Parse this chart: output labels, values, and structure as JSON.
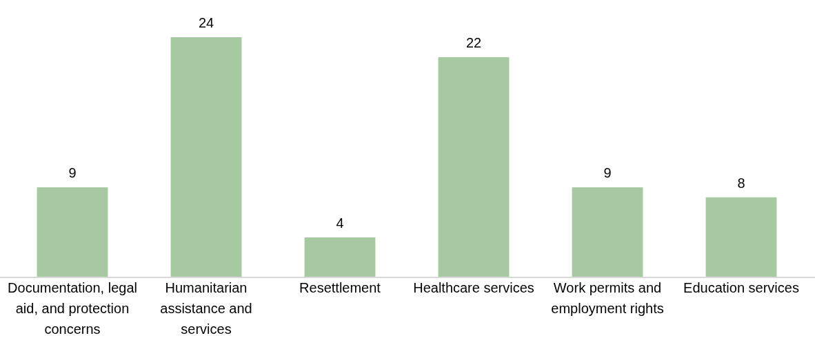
{
  "chart_data": {
    "type": "bar",
    "categories": [
      "Documentation, legal aid, and protection concerns",
      "Humanitarian assistance and services",
      "Resettlement",
      "Healthcare services",
      "Work permits and employment rights",
      "Education services"
    ],
    "values": [
      9,
      24,
      4,
      22,
      9,
      8
    ],
    "color": "#a6c9a1",
    "data_labels": true
  }
}
